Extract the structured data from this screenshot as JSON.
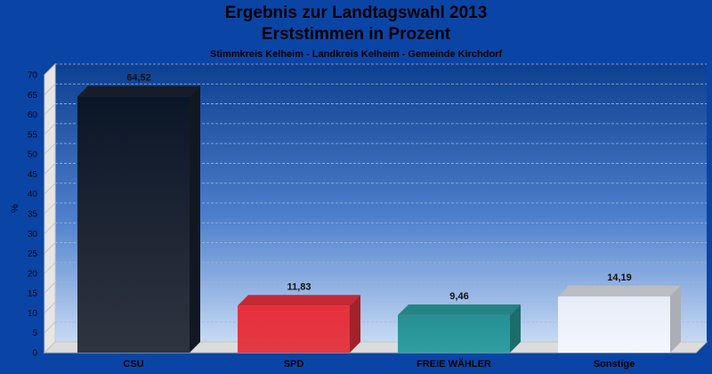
{
  "chart_data": {
    "type": "bar",
    "title": "Ergebnis zur Landtagswahl 2013",
    "title2": "Erststimmen in Prozent",
    "subtitle": "Stimmkreis Kelheim - Landkreis Kelheim - Gemeinde Kirchdorf",
    "ylabel": "%",
    "xlabel": "",
    "ylim": [
      0,
      70
    ],
    "yticks": [
      "0",
      "5",
      "10",
      "15",
      "20",
      "25",
      "30",
      "35",
      "40",
      "45",
      "50",
      "55",
      "60",
      "65",
      "70"
    ],
    "categories": [
      "CSU",
      "SPD",
      "FREIE WÄHLER",
      "Sonstige"
    ],
    "values": [
      64.52,
      11.83,
      9.46,
      14.19
    ],
    "value_labels": [
      "64,52",
      "11,83",
      "9,46",
      "14,19"
    ],
    "colors": [
      "#1a2230",
      "#e8303c",
      "#2a9a9a",
      "#eef2fa"
    ],
    "grid": true
  }
}
